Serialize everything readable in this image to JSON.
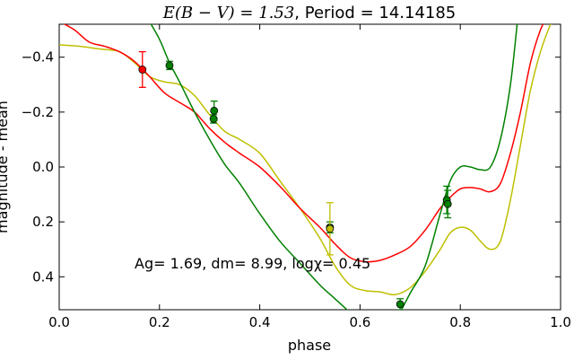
{
  "chart_data": {
    "type": "scatter",
    "title": {
      "math": "E(B − V) = 1.53",
      "text": ", Period = 14.14185"
    },
    "xlabel": "phase",
    "ylabel": "magnitude - mean",
    "xlim": [
      0.0,
      1.0
    ],
    "ylim": [
      0.52,
      -0.52
    ],
    "y_inverted": true,
    "x_ticks": [
      0.0,
      0.2,
      0.4,
      0.6,
      0.8,
      1.0
    ],
    "x_tick_labels": [
      "0.0",
      "0.2",
      "0.4",
      "0.6",
      "0.8",
      "1.0"
    ],
    "y_ticks": [
      -0.4,
      -0.2,
      0.0,
      0.2,
      0.4
    ],
    "y_tick_labels": [
      "−0.4",
      "−0.2",
      "0.0",
      "0.2",
      "0.4"
    ],
    "grid": false,
    "annotation": "Ag= 1.69, dm=  8.99, logχ=  0.45",
    "series": [
      {
        "color": "#ff0000",
        "points": [
          {
            "x": 0.166,
            "y": -0.355,
            "err": 0.065
          }
        ],
        "curve": [
          [
            0.0,
            -0.53
          ],
          [
            0.03,
            -0.5
          ],
          [
            0.06,
            -0.455
          ],
          [
            0.09,
            -0.44
          ],
          [
            0.12,
            -0.42
          ],
          [
            0.15,
            -0.385
          ],
          [
            0.18,
            -0.33
          ],
          [
            0.21,
            -0.27
          ],
          [
            0.24,
            -0.235
          ],
          [
            0.27,
            -0.2
          ],
          [
            0.3,
            -0.14
          ],
          [
            0.33,
            -0.09
          ],
          [
            0.36,
            -0.05
          ],
          [
            0.4,
            0.0
          ],
          [
            0.44,
            0.07
          ],
          [
            0.48,
            0.15
          ],
          [
            0.52,
            0.22
          ],
          [
            0.55,
            0.28
          ],
          [
            0.58,
            0.33
          ],
          [
            0.61,
            0.345
          ],
          [
            0.64,
            0.34
          ],
          [
            0.67,
            0.32
          ],
          [
            0.7,
            0.29
          ],
          [
            0.73,
            0.23
          ],
          [
            0.76,
            0.15
          ],
          [
            0.78,
            0.11
          ],
          [
            0.8,
            0.08
          ],
          [
            0.82,
            0.075
          ],
          [
            0.84,
            0.08
          ],
          [
            0.86,
            0.09
          ],
          [
            0.88,
            0.06
          ],
          [
            0.9,
            -0.05
          ],
          [
            0.92,
            -0.2
          ],
          [
            0.94,
            -0.38
          ],
          [
            0.96,
            -0.5
          ],
          [
            0.975,
            -0.55
          ]
        ]
      },
      {
        "color": "#008000",
        "points": [
          {
            "x": 0.22,
            "y": -0.37,
            "err": 0.015
          },
          {
            "x": 0.308,
            "y": -0.175,
            "err": 0.015
          },
          {
            "x": 0.309,
            "y": -0.205,
            "err": 0.035
          },
          {
            "x": 0.54,
            "y": 0.22,
            "err": 0.02
          },
          {
            "x": 0.68,
            "y": 0.5,
            "err": 0.02
          },
          {
            "x": 0.773,
            "y": 0.12,
            "err": 0.05
          },
          {
            "x": 0.775,
            "y": 0.135,
            "err": 0.05
          }
        ],
        "curve": [
          [
            0.18,
            -0.53
          ],
          [
            0.2,
            -0.465
          ],
          [
            0.22,
            -0.38
          ],
          [
            0.24,
            -0.31
          ],
          [
            0.27,
            -0.2
          ],
          [
            0.3,
            -0.1
          ],
          [
            0.33,
            -0.01
          ],
          [
            0.36,
            0.06
          ],
          [
            0.4,
            0.17
          ],
          [
            0.44,
            0.27
          ],
          [
            0.48,
            0.35
          ],
          [
            0.52,
            0.43
          ],
          [
            0.55,
            0.48
          ],
          [
            0.58,
            0.53
          ]
        ],
        "curve2": [
          [
            0.68,
            0.53
          ],
          [
            0.7,
            0.46
          ],
          [
            0.73,
            0.36
          ],
          [
            0.76,
            0.17
          ],
          [
            0.78,
            0.05
          ],
          [
            0.8,
            0.0
          ],
          [
            0.82,
            0.0
          ],
          [
            0.84,
            0.01
          ],
          [
            0.86,
            0.0
          ],
          [
            0.88,
            -0.1
          ],
          [
            0.9,
            -0.3
          ],
          [
            0.915,
            -0.55
          ]
        ]
      },
      {
        "color": "#bfbf00",
        "points": [
          {
            "x": 0.54,
            "y": 0.225,
            "err": 0.095
          }
        ],
        "curve": [
          [
            0.0,
            -0.445
          ],
          [
            0.04,
            -0.44
          ],
          [
            0.08,
            -0.43
          ],
          [
            0.12,
            -0.42
          ],
          [
            0.15,
            -0.38
          ],
          [
            0.18,
            -0.33
          ],
          [
            0.21,
            -0.31
          ],
          [
            0.24,
            -0.3
          ],
          [
            0.27,
            -0.26
          ],
          [
            0.3,
            -0.19
          ],
          [
            0.33,
            -0.13
          ],
          [
            0.36,
            -0.1
          ],
          [
            0.4,
            -0.05
          ],
          [
            0.44,
            0.05
          ],
          [
            0.48,
            0.15
          ],
          [
            0.52,
            0.26
          ],
          [
            0.55,
            0.36
          ],
          [
            0.58,
            0.43
          ],
          [
            0.61,
            0.45
          ],
          [
            0.64,
            0.455
          ],
          [
            0.67,
            0.465
          ],
          [
            0.7,
            0.44
          ],
          [
            0.73,
            0.38
          ],
          [
            0.76,
            0.3
          ],
          [
            0.78,
            0.24
          ],
          [
            0.8,
            0.22
          ],
          [
            0.82,
            0.23
          ],
          [
            0.84,
            0.27
          ],
          [
            0.86,
            0.3
          ],
          [
            0.88,
            0.27
          ],
          [
            0.9,
            0.12
          ],
          [
            0.92,
            -0.08
          ],
          [
            0.94,
            -0.28
          ],
          [
            0.96,
            -0.42
          ],
          [
            0.98,
            -0.52
          ],
          [
            0.99,
            -0.55
          ]
        ]
      }
    ]
  }
}
